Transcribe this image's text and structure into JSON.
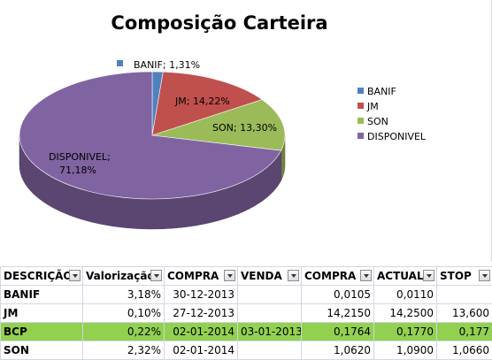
{
  "chart_data": {
    "type": "pie",
    "title": "Composição Carteira",
    "slices": [
      {
        "name": "BANIF",
        "value": 1.31,
        "label": "BANIF; 1,31%",
        "color": "#4f81bd"
      },
      {
        "name": "JM",
        "value": 14.22,
        "label": "JM; 14,22%",
        "color": "#c0504d"
      },
      {
        "name": "SON",
        "value": 13.3,
        "label": "SON; 13,30%",
        "color": "#9bbb59"
      },
      {
        "name": "DISPONIVEL",
        "value": 71.18,
        "label_line1": "DISPONIVEL;",
        "label_line2": "71,18%",
        "color": "#8064a2"
      }
    ],
    "legend": [
      "BANIF",
      "JM",
      "SON",
      "DISPONIVEL"
    ],
    "legend_position": "right",
    "style": "3d-pie"
  },
  "table": {
    "headers": [
      "DESCRIÇÃO",
      "Valorização",
      "COMPRA",
      "VENDA",
      "COMPRA",
      "ACTUAL",
      "STOP"
    ],
    "rows": [
      {
        "cells": [
          "BANIF",
          "3,18%",
          "30-12-2013",
          "",
          "0,0105",
          "0,0110",
          ""
        ],
        "highlight": false
      },
      {
        "cells": [
          "JM",
          "0,10%",
          "27-12-2013",
          "",
          "14,2150",
          "14,2500",
          "13,600"
        ],
        "highlight": false
      },
      {
        "cells": [
          "BCP",
          "0,22%",
          "02-01-2014",
          "03-01-2013",
          "0,1764",
          "0,1770",
          "0,177"
        ],
        "highlight": true
      },
      {
        "cells": [
          "SON",
          "2,32%",
          "02-01-2014",
          "",
          "1,0620",
          "1,0900",
          "1,0660"
        ],
        "highlight": false
      }
    ],
    "highlight_color": "#92d050",
    "filter_icon": "dropdown-arrow-icon"
  }
}
